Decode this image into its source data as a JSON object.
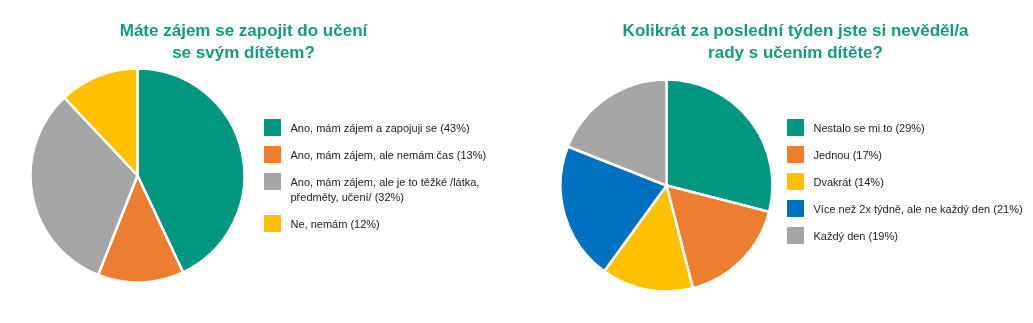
{
  "chart_data": [
    {
      "type": "pie",
      "title": "Máte zájem se zapojit do učení se svým dítětem?",
      "categories": [
        "Ano, mám zájem a zapojuji se (43%)",
        "Ano, mám zájem, ale nemám čas (13%)",
        "Ano, mám zájem, ale je to těžké /látka, předměty, učení/ (32%)",
        "Ne, nemám (12%)"
      ],
      "values": [
        43,
        13,
        32,
        12
      ],
      "colors": [
        "#009780",
        "#ed7d31",
        "#a5a5a5",
        "#ffc000"
      ],
      "legend": "right"
    },
    {
      "type": "pie",
      "title": "Kolikrát za poslední týden jste si nevěděl/a rady s učením dítěte?",
      "categories": [
        "Nestalo se mi to (29%)",
        "Jednou (17%)",
        "Dvakrát (14%)",
        "Více než 2x týdně, ale ne každý den (21%)",
        "Každý den (19%)"
      ],
      "values": [
        29,
        17,
        14,
        21,
        19
      ],
      "colors": [
        "#009780",
        "#ed7d31",
        "#ffc000",
        "#0070c0",
        "#a5a5a5"
      ],
      "legend": "right"
    }
  ]
}
